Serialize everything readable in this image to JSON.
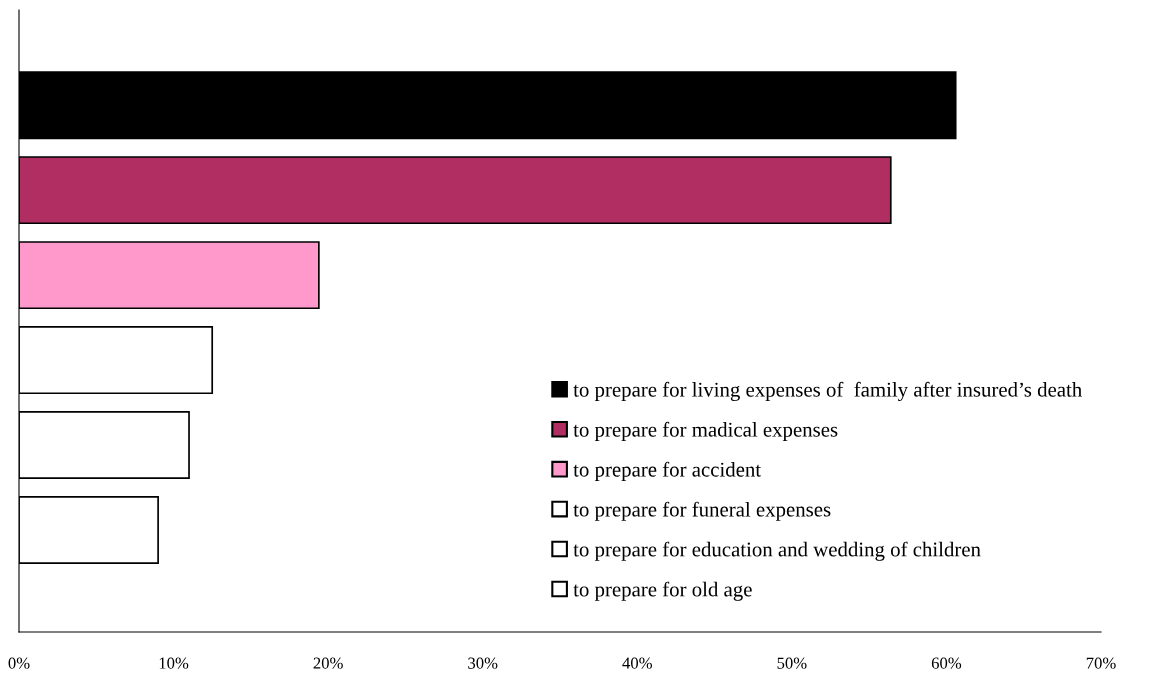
{
  "chart_data": {
    "type": "bar",
    "orientation": "horizontal",
    "categories": [
      null,
      null,
      null,
      null,
      null,
      null
    ],
    "series": [
      {
        "name": "to prepare for living expenses of  family after insured’s death",
        "color": "#000000",
        "values": [
          60.6,
          null,
          null,
          null,
          null,
          null
        ]
      },
      {
        "name": "to prepare for madical expenses",
        "color": "#b02e62",
        "values": [
          null,
          56.4,
          null,
          null,
          null,
          null
        ]
      },
      {
        "name": "to prepare for accident",
        "color": "#ff99cc",
        "values": [
          null,
          null,
          19.4,
          null,
          null,
          null
        ]
      },
      {
        "name": "to prepare for funeral expenses",
        "color": "#ffffff",
        "values": [
          null,
          null,
          null,
          12.5,
          null,
          null
        ]
      },
      {
        "name": "to prepare for education and wedding of children",
        "color": "#ffffff",
        "values": [
          null,
          null,
          null,
          null,
          11.0,
          null
        ]
      },
      {
        "name": "to prepare for old age",
        "color": "#ffffff",
        "values": [
          null,
          null,
          null,
          null,
          null,
          9.0
        ]
      }
    ],
    "xlim": [
      0,
      70
    ],
    "xticks": [
      {
        "value": 0,
        "label": "0%"
      },
      {
        "value": 10,
        "label": "10%"
      },
      {
        "value": 20,
        "label": "20%"
      },
      {
        "value": 30,
        "label": "30%"
      },
      {
        "value": 40,
        "label": "40%"
      },
      {
        "value": 50,
        "label": "50%"
      },
      {
        "value": 60,
        "label": "60%"
      },
      {
        "value": 70,
        "label": "70%"
      }
    ],
    "legend": "bottom right",
    "grid": false
  }
}
